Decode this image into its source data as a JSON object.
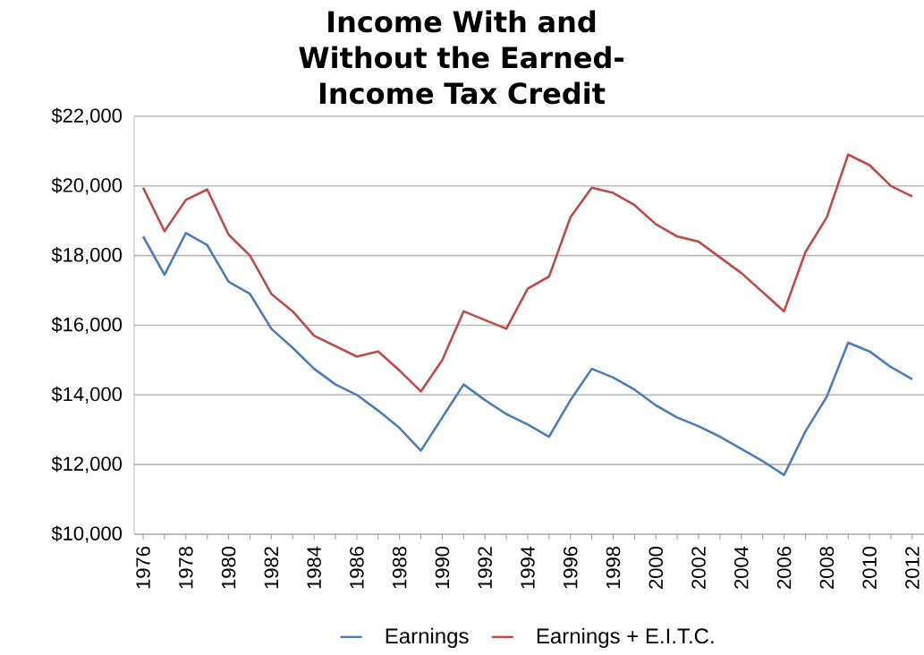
{
  "chart_data": {
    "type": "line",
    "title": "Income With and Without the Earned-Income Tax Credit",
    "categories": [
      "1976",
      null,
      "1978",
      null,
      "1980",
      null,
      "1982",
      null,
      "1984",
      null,
      "1986",
      null,
      "1988",
      null,
      "1990",
      null,
      "1992",
      null,
      "1994",
      null,
      "1996",
      null,
      "1998",
      null,
      "2000",
      null,
      "2002",
      null,
      "2004",
      null,
      "2006",
      null,
      "2008",
      null,
      "2010",
      null,
      "2012"
    ],
    "series": [
      {
        "name": "Earnings",
        "color": "#4a7ebb",
        "values": [
          18550,
          17450,
          18650,
          18300,
          17250,
          16900,
          15900,
          15350,
          14750,
          14300,
          14000,
          13550,
          13050,
          12400,
          13350,
          14300,
          13850,
          13450,
          13150,
          12800,
          13850,
          14750,
          14500,
          14150,
          13700,
          13350,
          13100,
          12800,
          12450,
          12100,
          11700,
          12950,
          13950,
          15500,
          15250,
          14800,
          14450
        ]
      },
      {
        "name": "Earnings + E.I.T.C.",
        "color": "#be4b48",
        "values": [
          19950,
          18700,
          19600,
          19900,
          18600,
          18000,
          16900,
          16400,
          15700,
          15400,
          15100,
          15250,
          14700,
          14100,
          15000,
          16400,
          16150,
          15900,
          17050,
          17400,
          19100,
          19950,
          19800,
          19450,
          18900,
          18550,
          18400,
          17950,
          17500,
          16950,
          16400,
          18100,
          19100,
          20900,
          20600,
          20000,
          19700
        ]
      }
    ],
    "ylim": [
      10000,
      22000
    ],
    "yticks": [
      {
        "value": 10000,
        "label": "$10,000"
      },
      {
        "value": 12000,
        "label": "$12,000"
      },
      {
        "value": 14000,
        "label": "$14,000"
      },
      {
        "value": 16000,
        "label": "$16,000"
      },
      {
        "value": 18000,
        "label": "$18,000"
      },
      {
        "value": 20000,
        "label": "$20,000"
      },
      {
        "value": 22000,
        "label": "$22,000"
      }
    ],
    "grid": "y",
    "legend": "bottom",
    "marker": "none",
    "line_style": "solid"
  }
}
